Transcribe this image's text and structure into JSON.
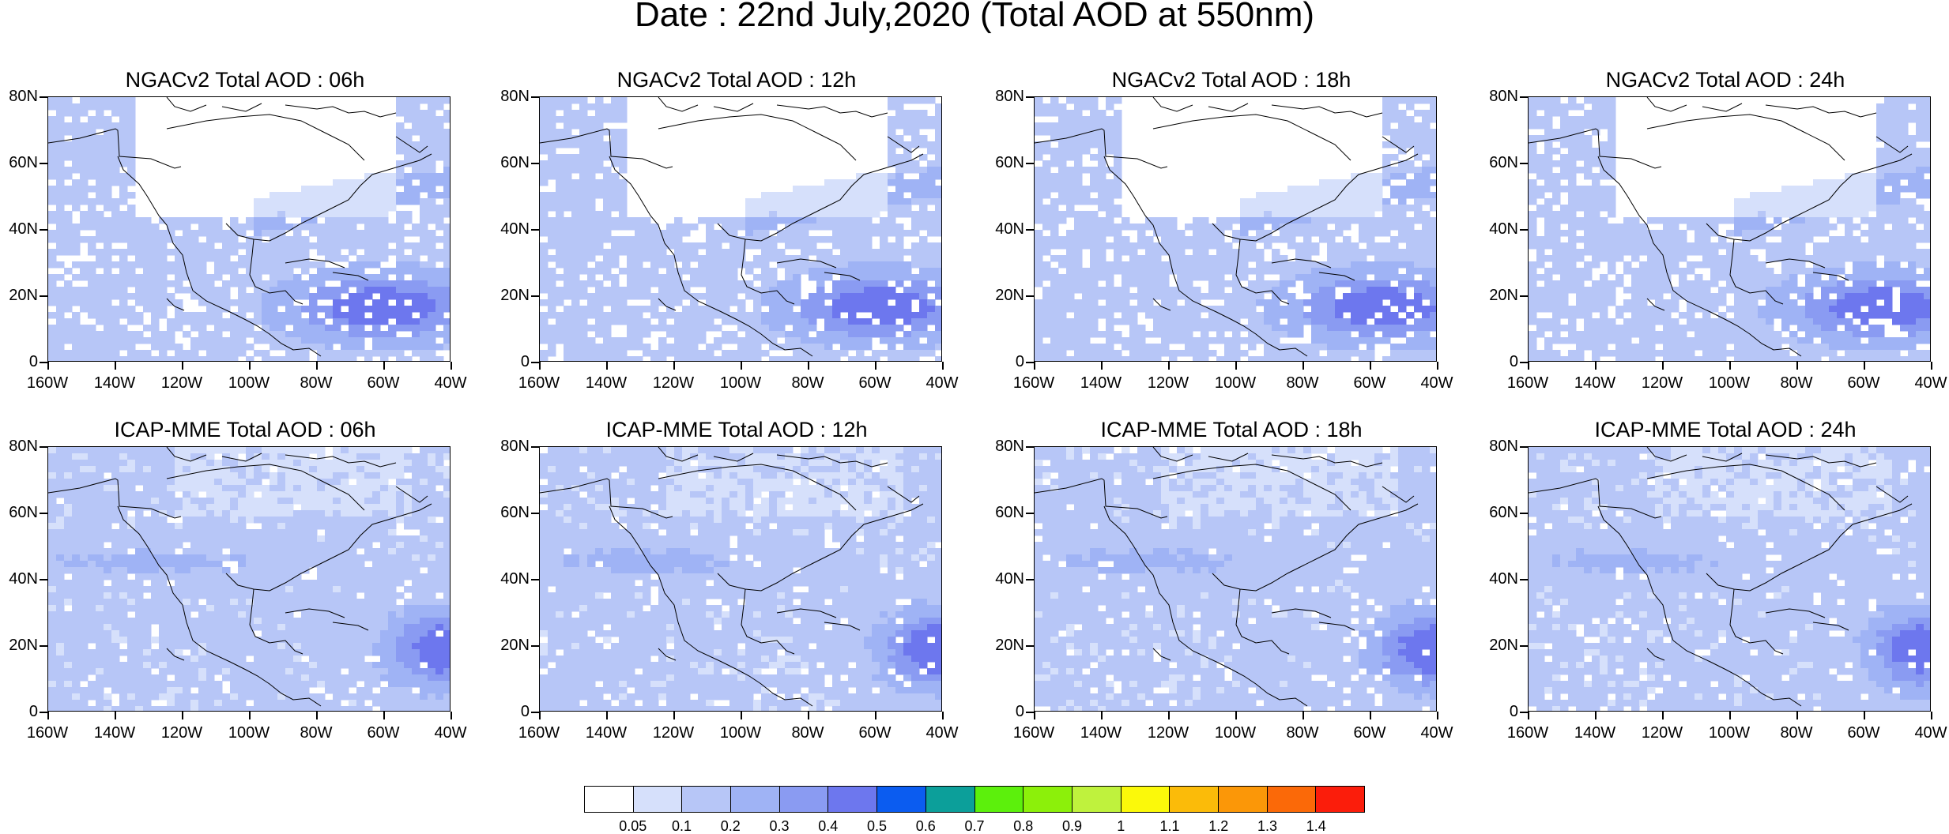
{
  "title": "Date : 22nd July,2020 (Total AOD at 550nm)",
  "axes": {
    "x_ticks": [
      "160W",
      "140W",
      "120W",
      "100W",
      "80W",
      "60W",
      "40W"
    ],
    "y_ticks": [
      "80N",
      "60N",
      "40N",
      "20N",
      "0"
    ]
  },
  "panels": [
    {
      "title": "NGACv2 Total AOD : 06h",
      "model": "NGACv2",
      "hour": "06h"
    },
    {
      "title": "NGACv2 Total AOD : 12h",
      "model": "NGACv2",
      "hour": "12h"
    },
    {
      "title": "NGACv2 Total AOD : 18h",
      "model": "NGACv2",
      "hour": "18h"
    },
    {
      "title": "NGACv2 Total AOD : 24h",
      "model": "NGACv2",
      "hour": "24h"
    },
    {
      "title": "ICAP-MME Total AOD : 06h",
      "model": "ICAP-MME",
      "hour": "06h"
    },
    {
      "title": "ICAP-MME Total AOD : 12h",
      "model": "ICAP-MME",
      "hour": "12h"
    },
    {
      "title": "ICAP-MME Total AOD : 18h",
      "model": "ICAP-MME",
      "hour": "18h"
    },
    {
      "title": "ICAP-MME Total AOD : 24h",
      "model": "ICAP-MME",
      "hour": "24h"
    }
  ],
  "colorbar": {
    "labels": [
      "0.05",
      "0.1",
      "0.2",
      "0.3",
      "0.4",
      "0.5",
      "0.6",
      "0.7",
      "0.8",
      "0.9",
      "1",
      "1.1",
      "1.2",
      "1.3",
      "1.4"
    ],
    "colors": [
      "#ffffff",
      "#d6e0fb",
      "#b7c6f7",
      "#9fb3f5",
      "#8a9bf2",
      "#6d77ee",
      "#0b5cf0",
      "#0c9f9a",
      "#5cf00c",
      "#8cf00a",
      "#bff23d",
      "#fbf90a",
      "#fbbb09",
      "#fb9708",
      "#fb6908",
      "#fb1d0b"
    ]
  }
}
